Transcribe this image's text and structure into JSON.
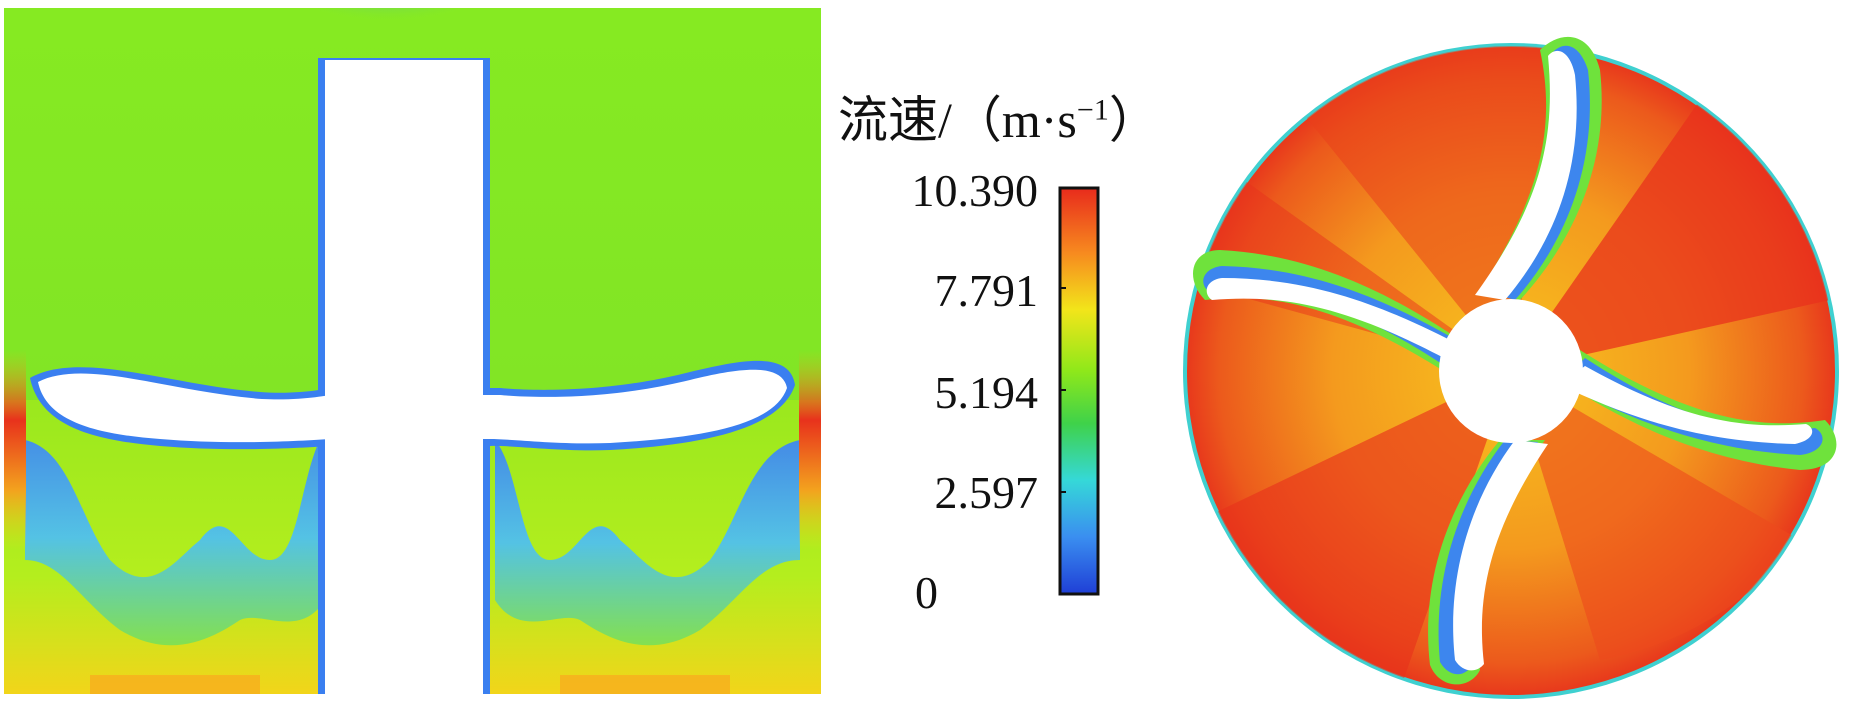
{
  "legend": {
    "title_text": "流速/（m·s",
    "title_exponent": "−1",
    "title_close": "）",
    "ticks": [
      "10.390",
      "7.791",
      "5.194",
      "2.597",
      "0"
    ],
    "range": [
      0,
      10.39
    ],
    "colormap": [
      "#1f3fd6",
      "#3aa0f0",
      "#35d8d8",
      "#3fd24a",
      "#88f01a",
      "#e8e81a",
      "#f9a41f",
      "#e82b1c"
    ]
  }
}
